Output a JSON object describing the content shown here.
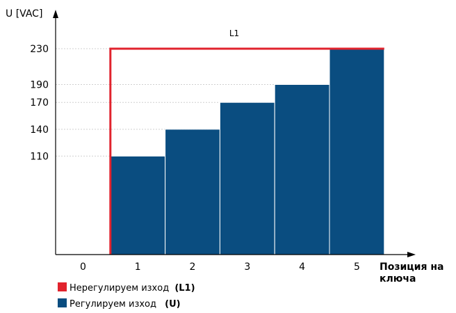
{
  "chart_data": {
    "type": "bar",
    "ylabel": "U [VAC]",
    "xlabel_line1": "Позиция на",
    "xlabel_line2": "ключа",
    "categories": [
      "0",
      "1",
      "2",
      "3",
      "4",
      "5"
    ],
    "ylim": [
      0,
      244
    ],
    "yticks": [
      110,
      140,
      170,
      190,
      230
    ],
    "grid": "dotted horizontal",
    "series": [
      {
        "name": "Регулируем изход",
        "name_bold": "(U)",
        "type": "bar",
        "color": "#0a4d80",
        "values": [
          null,
          110,
          140,
          170,
          190,
          230
        ]
      },
      {
        "name": "Нерегулируем изход",
        "name_bold": "(L1)",
        "type": "step-line",
        "color": "#e1232d",
        "values": [
          0,
          230,
          230,
          230,
          230,
          230
        ],
        "step_start": 0.5,
        "label": "L1"
      }
    ],
    "legend_position": "bottom-left"
  }
}
